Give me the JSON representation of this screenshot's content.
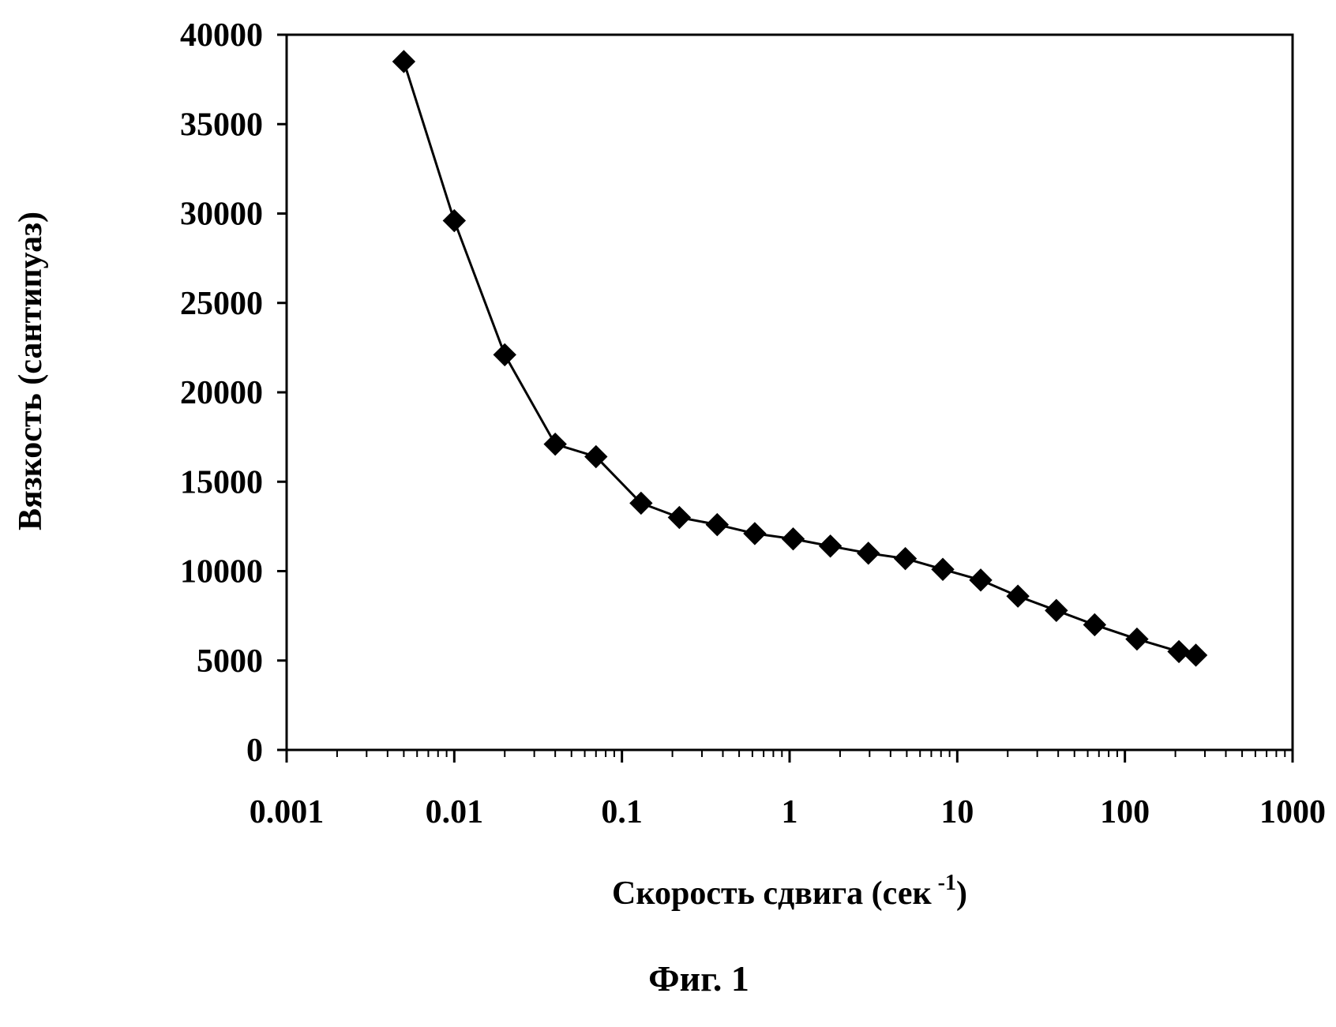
{
  "chart_data": {
    "type": "scatter",
    "title": "",
    "xlabel": "Скорость сдвига (сек",
    "xlabel_sup": "-1",
    "xlabel_close": ")",
    "ylabel": "Вязкость (сантипуаз)",
    "x_scale": "log",
    "xlim": [
      0.001,
      1000
    ],
    "ylim": [
      0,
      40000
    ],
    "x_ticks": [
      "0.001",
      "0.01",
      "0.1",
      "1",
      "10",
      "100",
      "1000"
    ],
    "y_ticks": [
      "0",
      "5000",
      "10000",
      "15000",
      "20000",
      "25000",
      "30000",
      "35000",
      "40000"
    ],
    "grid": false,
    "legend": "none",
    "marker": "diamond",
    "line_color": "#000000",
    "series": [
      {
        "x": [
          0.005,
          0.01,
          0.02,
          0.04,
          0.07,
          0.13,
          0.22,
          0.37,
          0.62,
          1.05,
          1.75,
          2.95,
          4.9,
          8.2,
          13.8,
          23,
          39,
          66,
          118,
          210,
          265
        ],
        "y": [
          38500,
          29600,
          22100,
          17100,
          16400,
          13800,
          13000,
          12600,
          12100,
          11800,
          11400,
          11000,
          10700,
          10100,
          9500,
          8600,
          7800,
          7000,
          6200,
          5500,
          5300
        ]
      }
    ]
  },
  "caption": "Фиг. 1"
}
